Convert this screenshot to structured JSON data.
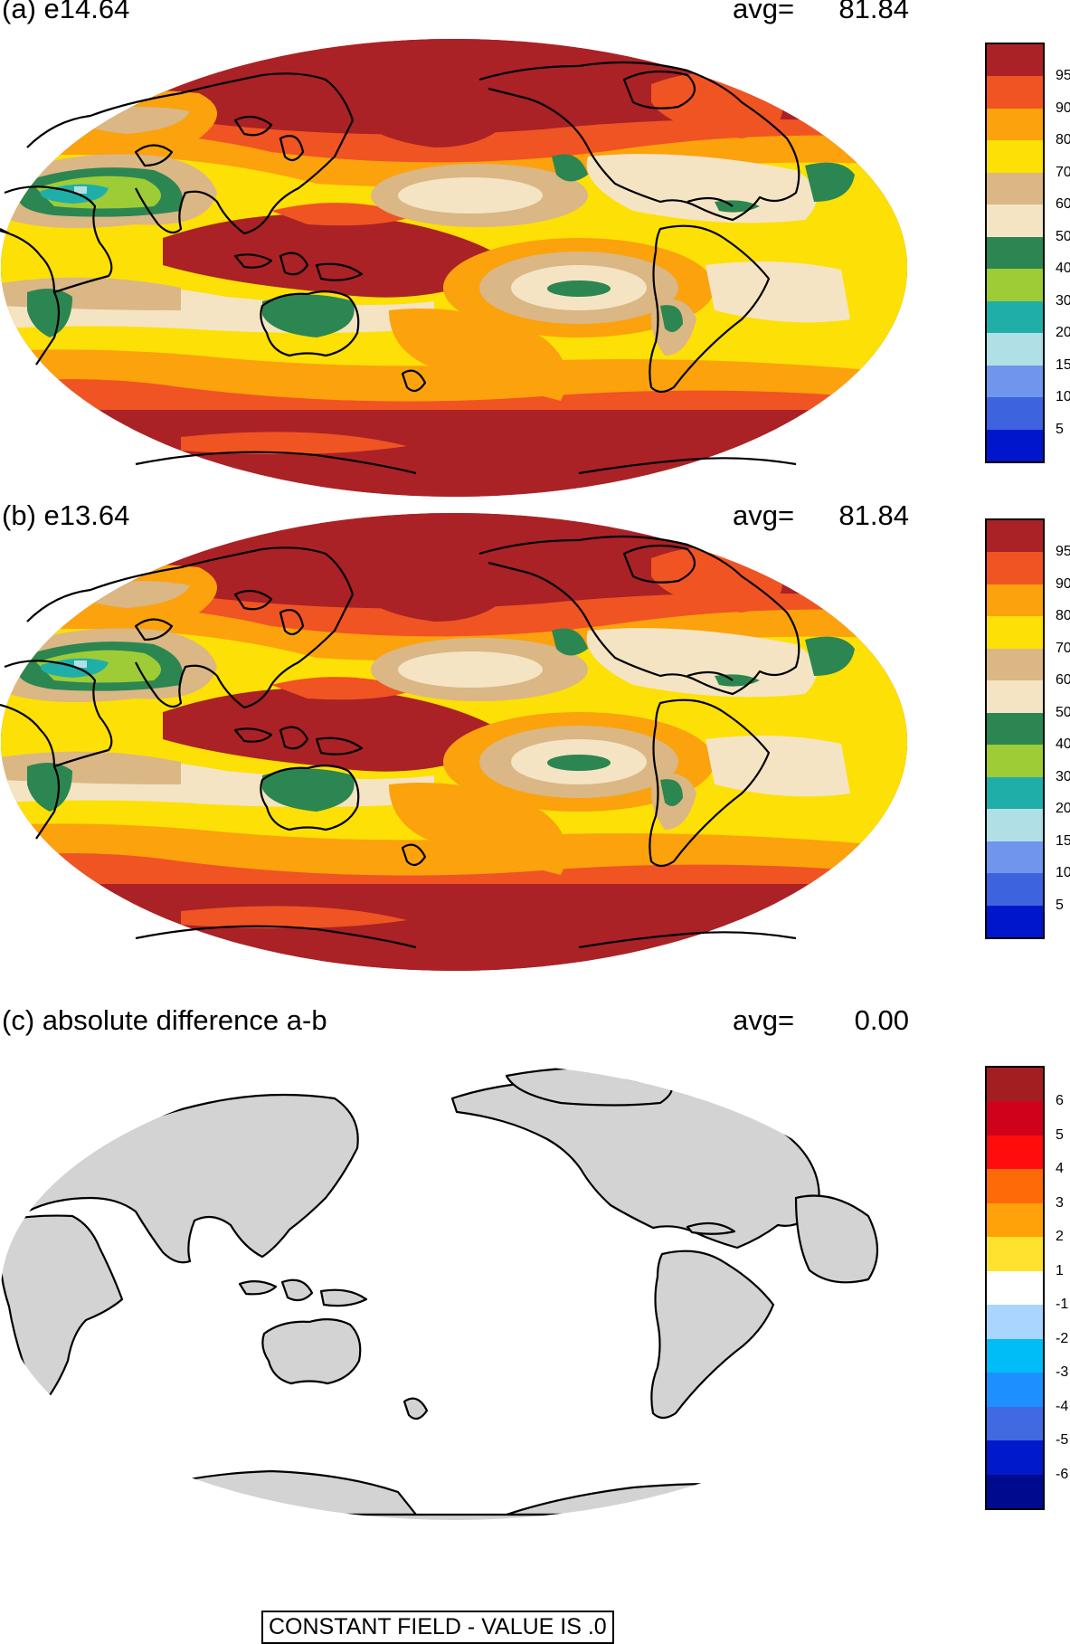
{
  "panels": [
    {
      "title": "(a) e14.64",
      "avg_label": "avg=",
      "avg_value": "81.84",
      "colorbar": {
        "colors": [
          "#aa2226",
          "#f05423",
          "#fba20d",
          "#fde005",
          "#dab785",
          "#f4e4c3",
          "#2c8651",
          "#9dcc37",
          "#1fafa8",
          "#b0e0e6",
          "#7095ec",
          "#3d63df",
          "#0016cc"
        ],
        "labels": [
          "95",
          "90",
          "80",
          "70",
          "60",
          "50",
          "40",
          "30",
          "20",
          "15",
          "10",
          "5"
        ]
      }
    },
    {
      "title": "(b) e13.64",
      "avg_label": "avg=",
      "avg_value": "81.84",
      "colorbar": {
        "colors": [
          "#aa2226",
          "#f05423",
          "#fba20d",
          "#fde005",
          "#dab785",
          "#f4e4c3",
          "#2c8651",
          "#9dcc37",
          "#1fafa8",
          "#b0e0e6",
          "#7095ec",
          "#3d63df",
          "#0016cc"
        ],
        "labels": [
          "95",
          "90",
          "80",
          "70",
          "60",
          "50",
          "40",
          "30",
          "20",
          "15",
          "10",
          "5"
        ]
      }
    },
    {
      "title": "(c) absolute difference a-b",
      "avg_label": "avg=",
      "avg_value": "0.00",
      "note": "CONSTANT FIELD - VALUE IS .0",
      "colorbar": {
        "colors": [
          "#a31e21",
          "#d0021b",
          "#ff0d0d",
          "#ff6a09",
          "#ffa20a",
          "#ffe22d",
          "#ffffff",
          "#a9d5ff",
          "#00bdf7",
          "#1e8fff",
          "#4169e1",
          "#0019cb",
          "#000a8e"
        ],
        "labels": [
          "6",
          "5",
          "4",
          "3",
          "2",
          "1",
          "-1",
          "-2",
          "-3",
          "-4",
          "-5",
          "-6"
        ]
      }
    }
  ],
  "palette": {
    "land_gray": "#d3d3d3",
    "coast": "#000000"
  }
}
